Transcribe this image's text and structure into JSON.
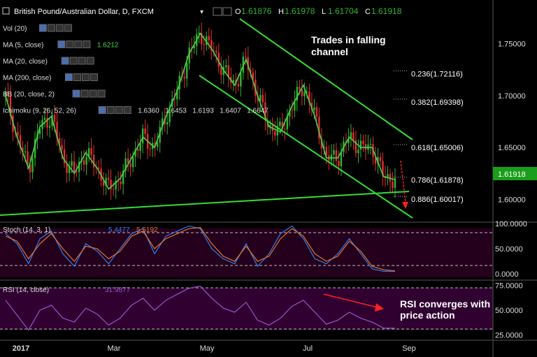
{
  "header": {
    "title": "British Pound/Australian Dollar, D, FXCM",
    "ohlc": [
      {
        "k": "O",
        "v": "1.61876"
      },
      {
        "k": "H",
        "v": "1.61978"
      },
      {
        "k": "L",
        "v": "1.61704"
      },
      {
        "k": "C",
        "v": "1.61918"
      }
    ]
  },
  "indicators": [
    {
      "label": "Vol (20)",
      "values": []
    },
    {
      "label": "MA (5, close)",
      "values": [
        "1.6212"
      ]
    },
    {
      "label": "MA (20, close)",
      "values": []
    },
    {
      "label": "MA (200, close)",
      "values": []
    },
    {
      "label": "BB (20, close, 2)",
      "values": []
    },
    {
      "label": "Ichimoku (9, 26, 52, 26)",
      "values": [
        "1.6360",
        "1.6453",
        "1.6193",
        "1.6407",
        "1.6647"
      ]
    }
  ],
  "colors": {
    "up": "#2fb52f",
    "down": "#e03030",
    "ma5": "#4cd14c",
    "channel": "#33dd33",
    "stoch_k": "#2f7ef0",
    "stoch_d": "#e8742f",
    "rsi": "#a050d0",
    "rsi_panel": "#300030",
    "stoch_panel": "#24001c",
    "price_tag": "#1a9e1a",
    "fib_text": "#ffffff",
    "arrow": "#ff2020"
  },
  "annotations": {
    "channel": [
      "Trades in falling",
      "channel"
    ],
    "rsi": [
      "RSI converges with",
      "price action"
    ]
  },
  "price_tag": "1.61918",
  "stoch": {
    "label": "Stoch (14, 3, 1)",
    "k": "5.4477",
    "d": "5.5192"
  },
  "rsi": {
    "label": "RSI (14, close)",
    "value": "31.9877"
  },
  "chart_data": [
    {
      "type": "line",
      "title": "British Pound/Australian Dollar, D, FXCM",
      "x_ticks": [
        "2017",
        "Mar",
        "May",
        "Jul",
        "Sep"
      ],
      "y_ticks": [
        "1.75000",
        "1.70000",
        "1.65000",
        "1.60000"
      ],
      "ylim": [
        1.578,
        1.772
      ],
      "series": [
        {
          "name": "MA (5, close)",
          "x": [
            "2017-01-01",
            "2017-01-10",
            "2017-01-17",
            "2017-01-24",
            "2017-02-01",
            "2017-02-08",
            "2017-02-15",
            "2017-02-22",
            "2017-03-01",
            "2017-03-08",
            "2017-03-15",
            "2017-03-22",
            "2017-03-29",
            "2017-04-05",
            "2017-04-12",
            "2017-04-19",
            "2017-04-26",
            "2017-05-03",
            "2017-05-10",
            "2017-05-17",
            "2017-05-24",
            "2017-05-31",
            "2017-06-07",
            "2017-06-14",
            "2017-06-21",
            "2017-06-28",
            "2017-07-05",
            "2017-07-12",
            "2017-07-19",
            "2017-07-26",
            "2017-08-02",
            "2017-08-09",
            "2017-08-16",
            "2017-08-23",
            "2017-08-28"
          ],
          "values": [
            1.7,
            1.66,
            1.63,
            1.67,
            1.68,
            1.64,
            1.625,
            1.645,
            1.63,
            1.61,
            1.62,
            1.64,
            1.66,
            1.65,
            1.68,
            1.705,
            1.74,
            1.76,
            1.745,
            1.725,
            1.71,
            1.735,
            1.7,
            1.67,
            1.665,
            1.69,
            1.71,
            1.68,
            1.64,
            1.64,
            1.66,
            1.65,
            1.65,
            1.622,
            1.619
          ]
        }
      ]
    },
    {
      "type": "line",
      "title": "Stoch (14, 3, 1)",
      "y_ticks": [
        "100.0000",
        "50.0000",
        "0.0000"
      ],
      "ylim": [
        0,
        100
      ],
      "series": [
        {
          "name": "Stoch %K",
          "values": [
            80,
            60,
            20,
            70,
            85,
            40,
            15,
            60,
            45,
            20,
            50,
            80,
            90,
            40,
            75,
            85,
            95,
            90,
            50,
            30,
            20,
            60,
            15,
            40,
            80,
            95,
            70,
            30,
            20,
            40,
            70,
            40,
            10,
            5,
            5
          ]
        },
        {
          "name": "Stoch %D",
          "values": [
            75,
            65,
            30,
            60,
            80,
            50,
            25,
            55,
            50,
            30,
            45,
            75,
            85,
            50,
            70,
            80,
            90,
            92,
            60,
            35,
            25,
            55,
            25,
            35,
            70,
            90,
            75,
            40,
            25,
            35,
            65,
            45,
            15,
            8,
            6
          ]
        }
      ]
    },
    {
      "type": "line",
      "title": "RSI (14, close)",
      "y_ticks": [
        "75.0000",
        "50.0000",
        "25.0000"
      ],
      "ylim": [
        22,
        78
      ],
      "series": [
        {
          "name": "RSI (14, close)",
          "values": [
            60,
            45,
            30,
            50,
            55,
            42,
            38,
            52,
            46,
            35,
            42,
            55,
            62,
            50,
            60,
            66,
            72,
            74,
            62,
            52,
            48,
            58,
            40,
            35,
            42,
            54,
            60,
            48,
            36,
            40,
            48,
            42,
            38,
            32,
            32
          ]
        }
      ]
    }
  ],
  "fib_levels": [
    {
      "label": "0.236(1.72116)",
      "value": 1.72116
    },
    {
      "label": "0.382(1.69398)",
      "value": 1.69398
    },
    {
      "label": "0.618(1.65006)",
      "value": 1.65006
    },
    {
      "label": "0.786(1.61878)",
      "value": 1.61878
    },
    {
      "label": "0.886(1.60017)",
      "value": 1.60017
    }
  ]
}
